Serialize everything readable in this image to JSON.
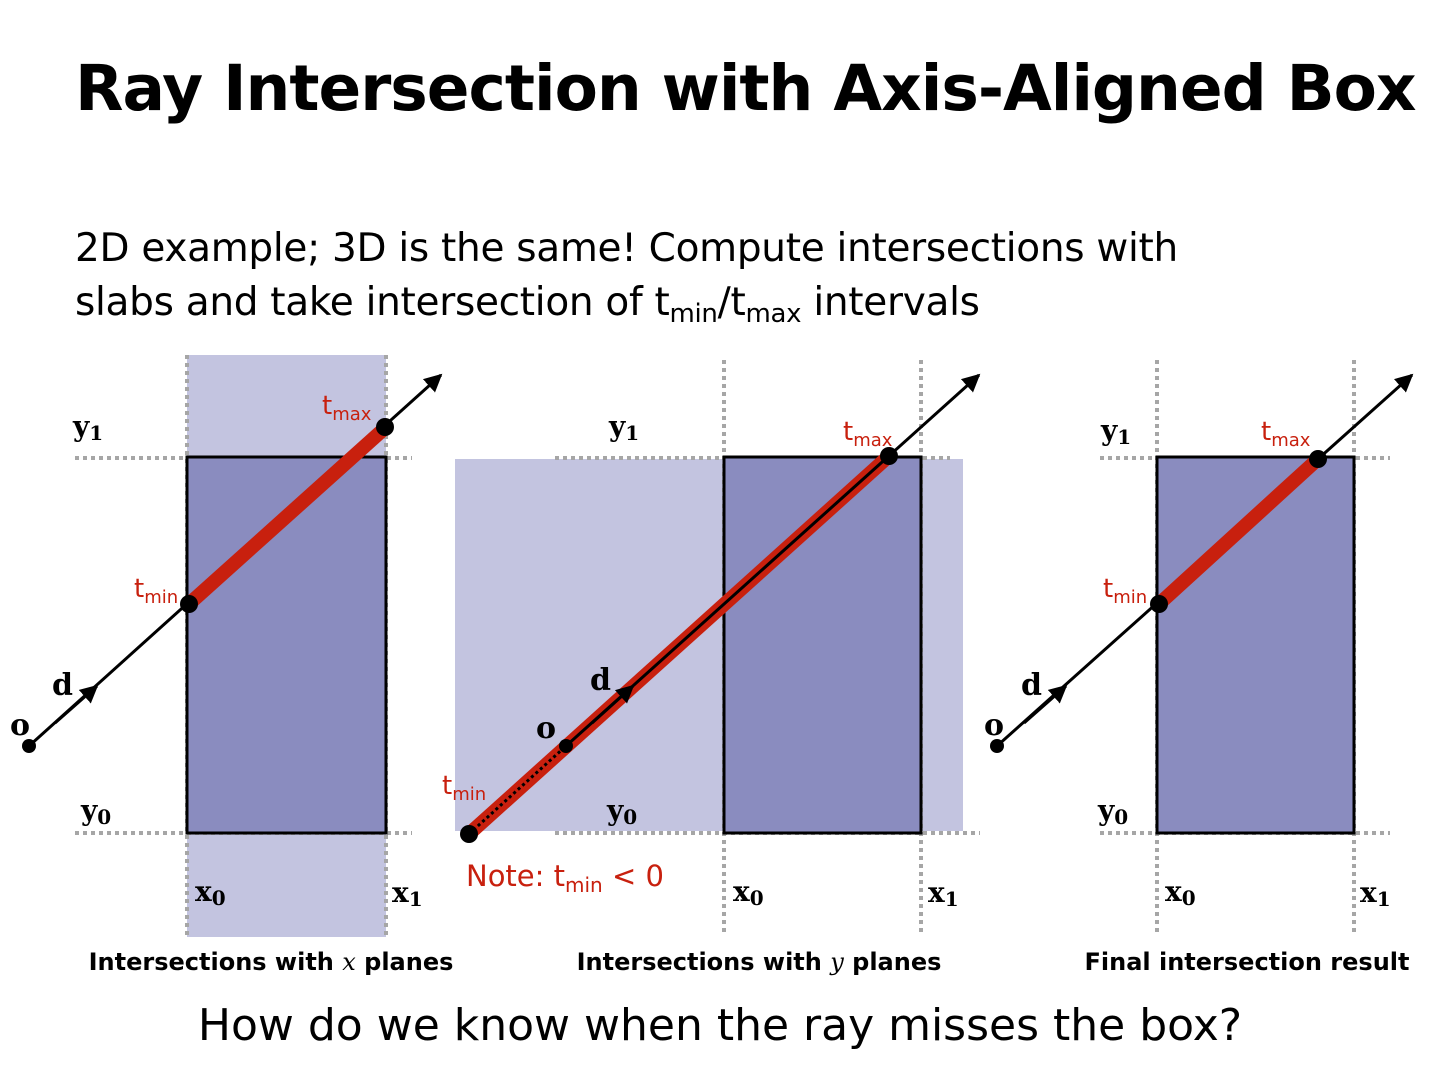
{
  "slide": {
    "title": "Ray Intersection with Axis-Aligned Box",
    "subtitle_line1": "2D example; 3D is the same!  Compute intersections with",
    "subtitle_line2_pre": "slabs and take intersection of t",
    "subtitle_line2_sub1": "min",
    "subtitle_line2_mid": "/t",
    "subtitle_line2_sub2": "max",
    "subtitle_line2_post": " intervals",
    "question": "How do we know when the ray misses the box?"
  },
  "colors": {
    "ray_segment": "#c8200e",
    "box_fill": "#8a8cbf",
    "slab_fill": "#c3c4e0",
    "grid_line": "#a6a6a6"
  },
  "labels": {
    "y1": "y",
    "y0": "y",
    "x0": "x",
    "x1": "x",
    "sub0": "0",
    "sub1": "1",
    "origin": "o",
    "direction": "d",
    "t": "t",
    "min": "min",
    "max": "max"
  },
  "panels": [
    {
      "caption_pre": "Intersections with ",
      "caption_var": "x",
      "caption_post": " planes"
    },
    {
      "caption_pre": "Intersections with ",
      "caption_var": "y",
      "caption_post": " planes",
      "note_pre": "Note:  t",
      "note_sub": "min",
      "note_post": " < 0"
    },
    {
      "caption": "Final intersection result"
    }
  ],
  "icons": [
    "arrowhead-icon",
    "point-icon"
  ]
}
